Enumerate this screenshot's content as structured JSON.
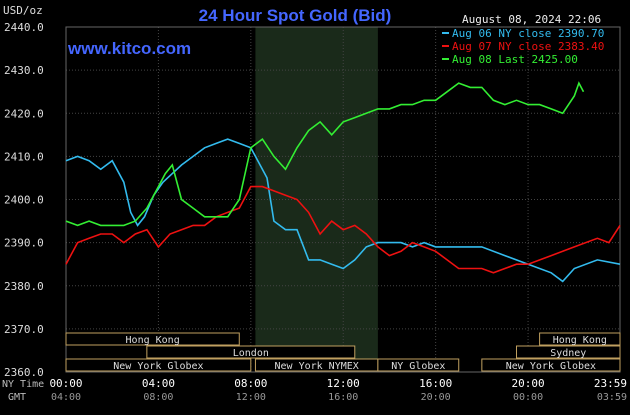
{
  "chart_data": {
    "type": "line",
    "title": "24 Hour Spot Gold (Bid)",
    "website": "www.kitco.com",
    "timestamp": "August 08, 2024 22:06",
    "y_unit_label": "USD/oz",
    "ylim": [
      2360,
      2440
    ],
    "y_ticks": [
      "2440.0",
      "2430.0",
      "2420.0",
      "2410.0",
      "2400.0",
      "2390.0",
      "2380.0",
      "2370.0",
      "2360.0"
    ],
    "x_row_labels": {
      "ny": "NY Time",
      "gmt": "GMT"
    },
    "x_ticks_ny": [
      "00:00",
      "04:00",
      "08:00",
      "12:00",
      "16:00",
      "20:00",
      "23:59"
    ],
    "x_ticks_gmt": [
      "04:00",
      "08:00",
      "12:00",
      "16:00",
      "20:00",
      "00:00",
      "03:59"
    ],
    "grid": true,
    "legend_placement": "top-right",
    "series": [
      {
        "name": "Aug 06 NY close 2390.70",
        "color": "#33bbee",
        "points": [
          [
            0,
            2409
          ],
          [
            0.5,
            2410
          ],
          [
            1,
            2409
          ],
          [
            1.5,
            2407
          ],
          [
            2,
            2409
          ],
          [
            2.5,
            2404
          ],
          [
            2.8,
            2397
          ],
          [
            3.1,
            2394
          ],
          [
            3.4,
            2396
          ],
          [
            3.8,
            2401
          ],
          [
            4.2,
            2404
          ],
          [
            4.6,
            2406
          ],
          [
            5,
            2408
          ],
          [
            5.5,
            2410
          ],
          [
            6,
            2412
          ],
          [
            6.5,
            2413
          ],
          [
            7,
            2414
          ],
          [
            7.5,
            2413
          ],
          [
            8,
            2412
          ],
          [
            8.3,
            2409
          ],
          [
            8.7,
            2405
          ],
          [
            9,
            2395
          ],
          [
            9.5,
            2393
          ],
          [
            10,
            2393
          ],
          [
            10.5,
            2386
          ],
          [
            11,
            2386
          ],
          [
            11.5,
            2385
          ],
          [
            12,
            2384
          ],
          [
            12.5,
            2386
          ],
          [
            13,
            2389
          ],
          [
            13.5,
            2390
          ],
          [
            14,
            2390
          ],
          [
            14.5,
            2390
          ],
          [
            15,
            2389
          ],
          [
            15.5,
            2390
          ],
          [
            16,
            2389
          ],
          [
            17,
            2389
          ],
          [
            18,
            2389
          ],
          [
            19,
            2387
          ],
          [
            20,
            2385
          ],
          [
            21,
            2383
          ],
          [
            21.5,
            2381
          ],
          [
            22,
            2384
          ],
          [
            23,
            2386
          ],
          [
            23.98,
            2385
          ]
        ]
      },
      {
        "name": "Aug 07 NY close 2383.40",
        "color": "#ee1111",
        "points": [
          [
            0,
            2385
          ],
          [
            0.5,
            2390
          ],
          [
            1,
            2391
          ],
          [
            1.5,
            2392
          ],
          [
            2,
            2392
          ],
          [
            2.5,
            2390
          ],
          [
            3,
            2392
          ],
          [
            3.5,
            2393
          ],
          [
            4,
            2389
          ],
          [
            4.5,
            2392
          ],
          [
            5,
            2393
          ],
          [
            5.5,
            2394
          ],
          [
            6,
            2394
          ],
          [
            6.5,
            2396
          ],
          [
            7,
            2397
          ],
          [
            7.5,
            2398
          ],
          [
            8,
            2403
          ],
          [
            8.5,
            2403
          ],
          [
            9,
            2402
          ],
          [
            9.5,
            2401
          ],
          [
            10,
            2400
          ],
          [
            10.5,
            2397
          ],
          [
            11,
            2392
          ],
          [
            11.5,
            2395
          ],
          [
            12,
            2393
          ],
          [
            12.5,
            2394
          ],
          [
            13,
            2392
          ],
          [
            13.5,
            2389
          ],
          [
            14,
            2387
          ],
          [
            14.5,
            2388
          ],
          [
            15,
            2390
          ],
          [
            15.5,
            2389
          ],
          [
            16,
            2388
          ],
          [
            17,
            2384
          ],
          [
            18,
            2384
          ],
          [
            18.5,
            2383
          ],
          [
            19,
            2384
          ],
          [
            19.5,
            2385
          ],
          [
            20,
            2385
          ],
          [
            21,
            2387
          ],
          [
            22,
            2389
          ],
          [
            23,
            2391
          ],
          [
            23.5,
            2390
          ],
          [
            23.98,
            2394
          ]
        ]
      },
      {
        "name": "Aug 08 Last 2425.00",
        "color": "#33ee33",
        "points": [
          [
            0,
            2395
          ],
          [
            0.5,
            2394
          ],
          [
            1,
            2395
          ],
          [
            1.5,
            2394
          ],
          [
            2,
            2394
          ],
          [
            2.5,
            2394
          ],
          [
            3,
            2395
          ],
          [
            3.5,
            2398
          ],
          [
            4,
            2403
          ],
          [
            4.3,
            2406
          ],
          [
            4.6,
            2408
          ],
          [
            5,
            2400
          ],
          [
            5.5,
            2398
          ],
          [
            6,
            2396
          ],
          [
            6.5,
            2396
          ],
          [
            7,
            2396
          ],
          [
            7.5,
            2400
          ],
          [
            8,
            2412
          ],
          [
            8.5,
            2414
          ],
          [
            9,
            2410
          ],
          [
            9.5,
            2407
          ],
          [
            10,
            2412
          ],
          [
            10.5,
            2416
          ],
          [
            11,
            2418
          ],
          [
            11.5,
            2415
          ],
          [
            12,
            2418
          ],
          [
            12.5,
            2419
          ],
          [
            13,
            2420
          ],
          [
            13.5,
            2421
          ],
          [
            14,
            2421
          ],
          [
            14.5,
            2422
          ],
          [
            15,
            2422
          ],
          [
            15.5,
            2423
          ],
          [
            16,
            2423
          ],
          [
            16.5,
            2425
          ],
          [
            17,
            2427
          ],
          [
            17.5,
            2426
          ],
          [
            18,
            2426
          ],
          [
            18.5,
            2423
          ],
          [
            19,
            2422
          ],
          [
            19.5,
            2423
          ],
          [
            20,
            2422
          ],
          [
            20.5,
            2422
          ],
          [
            21,
            2421
          ],
          [
            21.5,
            2420
          ],
          [
            22,
            2424
          ],
          [
            22.2,
            2427
          ],
          [
            22.4,
            2425
          ]
        ]
      }
    ]
  },
  "sessions": {
    "row1": [
      {
        "label": "Hong Kong",
        "start": 0,
        "end": 7.5
      },
      {
        "label": "Hong Kong",
        "start": 20.5,
        "end": 23.98
      }
    ],
    "row2": [
      {
        "label": "London",
        "start": 3.5,
        "end": 12.5
      },
      {
        "label": "Sydney",
        "start": 19.5,
        "end": 23.98
      }
    ],
    "row3": [
      {
        "label": "New York Globex",
        "start": 0,
        "end": 8
      },
      {
        "label": "New York NYMEX",
        "start": 8.2,
        "end": 13.5
      },
      {
        "label": "NY Globex",
        "start": 13.5,
        "end": 17
      },
      {
        "label": "New York Globex",
        "start": 18,
        "end": 23.98
      }
    ]
  },
  "nymex_shade": {
    "start": 8.2,
    "end": 13.5
  },
  "colors": {
    "background": "#000000",
    "title": "#4466ff",
    "grid": "#555555",
    "axis_text": "#dddddd",
    "session_box": "#c0a060"
  }
}
